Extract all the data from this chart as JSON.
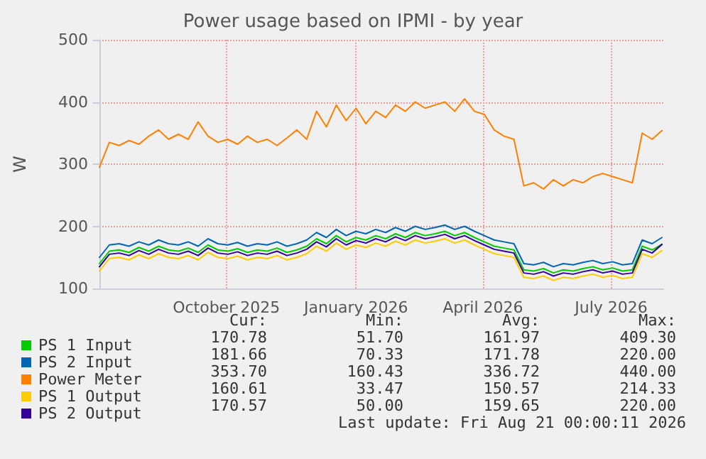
{
  "chart_data": {
    "type": "line",
    "title": "Power usage based on IPMI - by year",
    "ylabel": "W",
    "x": [
      "2025-07-17",
      "2025-07-24",
      "2025-07-31",
      "2025-08-07",
      "2025-08-14",
      "2025-08-21",
      "2025-08-28",
      "2025-09-04",
      "2025-09-11",
      "2025-09-18",
      "2025-09-25",
      "2025-10-02",
      "2025-10-09",
      "2025-10-16",
      "2025-10-23",
      "2025-10-30",
      "2025-11-06",
      "2025-11-13",
      "2025-11-20",
      "2025-11-27",
      "2025-12-04",
      "2025-12-11",
      "2025-12-18",
      "2025-12-25",
      "2026-01-01",
      "2026-01-08",
      "2026-01-15",
      "2026-01-22",
      "2026-01-29",
      "2026-02-05",
      "2026-02-12",
      "2026-02-19",
      "2026-02-26",
      "2026-03-05",
      "2026-03-12",
      "2026-03-19",
      "2026-03-26",
      "2026-04-02",
      "2026-04-09",
      "2026-04-16",
      "2026-04-23",
      "2026-04-30",
      "2026-05-07",
      "2026-05-14",
      "2026-05-21",
      "2026-05-28",
      "2026-06-04",
      "2026-06-11",
      "2026-06-18",
      "2026-06-25",
      "2026-07-02",
      "2026-07-09",
      "2026-07-16",
      "2026-07-23",
      "2026-07-30",
      "2026-08-06",
      "2026-08-13",
      "2026-08-20"
    ],
    "series": [
      {
        "name": "PS 1 Input",
        "color": "#00cc00",
        "values": [
          140,
          160,
          162,
          158,
          166,
          160,
          168,
          162,
          160,
          165,
          158,
          170,
          162,
          160,
          164,
          158,
          162,
          160,
          165,
          158,
          162,
          168,
          180,
          172,
          185,
          175,
          182,
          178,
          185,
          180,
          188,
          182,
          190,
          185,
          188,
          192,
          185,
          190,
          182,
          175,
          168,
          165,
          162,
          130,
          128,
          132,
          125,
          130,
          128,
          132,
          135,
          130,
          133,
          128,
          130,
          168,
          162,
          171
        ]
      },
      {
        "name": "PS 2 Input",
        "color": "#0066b3",
        "values": [
          150,
          170,
          172,
          168,
          175,
          170,
          178,
          172,
          170,
          175,
          168,
          180,
          172,
          170,
          174,
          168,
          172,
          170,
          175,
          168,
          172,
          178,
          190,
          182,
          195,
          185,
          192,
          188,
          195,
          190,
          198,
          192,
          200,
          195,
          198,
          202,
          195,
          200,
          192,
          185,
          178,
          175,
          172,
          140,
          138,
          142,
          135,
          140,
          138,
          142,
          145,
          140,
          143,
          138,
          140,
          178,
          172,
          182
        ]
      },
      {
        "name": "Power Meter",
        "color": "#ff8000",
        "values": [
          295,
          335,
          330,
          338,
          332,
          345,
          355,
          340,
          348,
          340,
          368,
          345,
          335,
          340,
          332,
          345,
          335,
          340,
          330,
          342,
          355,
          340,
          385,
          360,
          395,
          370,
          390,
          365,
          385,
          375,
          395,
          385,
          400,
          390,
          395,
          400,
          385,
          405,
          385,
          380,
          355,
          345,
          340,
          265,
          270,
          260,
          275,
          265,
          275,
          270,
          280,
          285,
          280,
          275,
          270,
          350,
          340,
          354
        ]
      },
      {
        "name": "PS 1 Output",
        "color": "#ffcc00",
        "values": [
          128,
          148,
          150,
          146,
          154,
          148,
          156,
          150,
          148,
          153,
          146,
          158,
          150,
          148,
          152,
          146,
          150,
          148,
          153,
          146,
          150,
          156,
          168,
          160,
          173,
          163,
          170,
          166,
          173,
          168,
          176,
          170,
          178,
          173,
          176,
          180,
          173,
          178,
          170,
          163,
          156,
          153,
          150,
          118,
          116,
          120,
          113,
          118,
          116,
          120,
          123,
          118,
          121,
          116,
          118,
          156,
          150,
          161
        ]
      },
      {
        "name": "PS 2 Output",
        "color": "#330099",
        "values": [
          135,
          155,
          157,
          153,
          161,
          155,
          163,
          157,
          155,
          160,
          153,
          165,
          157,
          155,
          159,
          153,
          157,
          155,
          160,
          153,
          157,
          163,
          175,
          167,
          180,
          170,
          177,
          173,
          180,
          175,
          183,
          177,
          185,
          180,
          183,
          187,
          180,
          185,
          177,
          170,
          163,
          160,
          157,
          125,
          123,
          127,
          120,
          125,
          123,
          127,
          130,
          125,
          128,
          123,
          125,
          163,
          157,
          171
        ]
      }
    ],
    "xlim": [
      "2025-07-17",
      "2026-08-21"
    ],
    "xticks": [
      {
        "value": "2025-10-15",
        "label": "October 2025"
      },
      {
        "value": "2026-01-15",
        "label": "January 2026"
      },
      {
        "value": "2026-04-15",
        "label": "April 2026"
      },
      {
        "value": "2026-07-15",
        "label": "July 2026"
      }
    ],
    "ylim": [
      100,
      500
    ],
    "yticks": [
      100,
      200,
      300,
      400,
      500
    ],
    "grid": true,
    "legend": "bottom left",
    "marker": "none",
    "line_style": "solid",
    "annotations": [
      "Cur:",
      "Min:",
      "Avg:",
      "Max:",
      "170.78",
      "51.70",
      "161.97",
      "409.30",
      "181.66",
      "70.33",
      "171.78",
      "220.00",
      "353.70",
      "160.43",
      "336.72",
      "440.00",
      "160.61",
      "33.47",
      "150.57",
      "214.33",
      "170.57",
      "50.00",
      "159.65",
      "220.00",
      "Last update: Fri Aug 21 00:00:11 2026"
    ]
  }
}
